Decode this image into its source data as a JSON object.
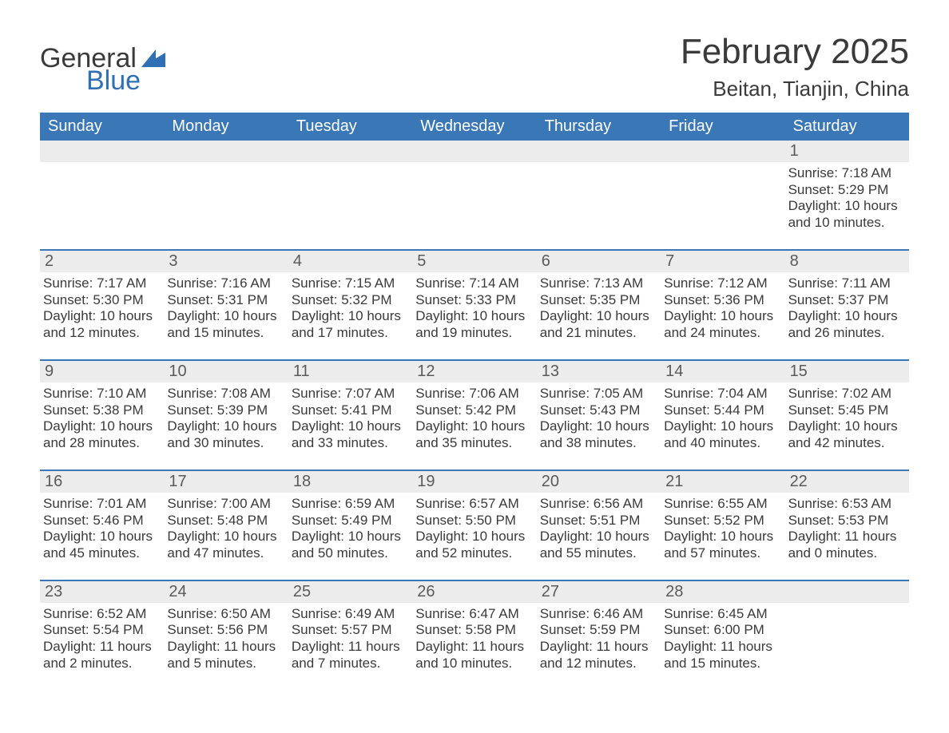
{
  "brand": {
    "general": "General",
    "blue": "Blue"
  },
  "title": "February 2025",
  "location": "Beitan, Tianjin, China",
  "colors": {
    "header_bg": "#3a77b6",
    "daynum_bg": "#ececec",
    "divider": "#3a77b6",
    "text": "#3a3a3a",
    "brand_blue": "#2f6fb3",
    "page_bg": "#ffffff"
  },
  "weekdays": [
    "Sunday",
    "Monday",
    "Tuesday",
    "Wednesday",
    "Thursday",
    "Friday",
    "Saturday"
  ],
  "weeks": [
    [
      {
        "day": "",
        "sunrise": "",
        "sunset": "",
        "daylight": ""
      },
      {
        "day": "",
        "sunrise": "",
        "sunset": "",
        "daylight": ""
      },
      {
        "day": "",
        "sunrise": "",
        "sunset": "",
        "daylight": ""
      },
      {
        "day": "",
        "sunrise": "",
        "sunset": "",
        "daylight": ""
      },
      {
        "day": "",
        "sunrise": "",
        "sunset": "",
        "daylight": ""
      },
      {
        "day": "",
        "sunrise": "",
        "sunset": "",
        "daylight": ""
      },
      {
        "day": "1",
        "sunrise": "Sunrise: 7:18 AM",
        "sunset": "Sunset: 5:29 PM",
        "daylight": "Daylight: 10 hours and 10 minutes."
      }
    ],
    [
      {
        "day": "2",
        "sunrise": "Sunrise: 7:17 AM",
        "sunset": "Sunset: 5:30 PM",
        "daylight": "Daylight: 10 hours and 12 minutes."
      },
      {
        "day": "3",
        "sunrise": "Sunrise: 7:16 AM",
        "sunset": "Sunset: 5:31 PM",
        "daylight": "Daylight: 10 hours and 15 minutes."
      },
      {
        "day": "4",
        "sunrise": "Sunrise: 7:15 AM",
        "sunset": "Sunset: 5:32 PM",
        "daylight": "Daylight: 10 hours and 17 minutes."
      },
      {
        "day": "5",
        "sunrise": "Sunrise: 7:14 AM",
        "sunset": "Sunset: 5:33 PM",
        "daylight": "Daylight: 10 hours and 19 minutes."
      },
      {
        "day": "6",
        "sunrise": "Sunrise: 7:13 AM",
        "sunset": "Sunset: 5:35 PM",
        "daylight": "Daylight: 10 hours and 21 minutes."
      },
      {
        "day": "7",
        "sunrise": "Sunrise: 7:12 AM",
        "sunset": "Sunset: 5:36 PM",
        "daylight": "Daylight: 10 hours and 24 minutes."
      },
      {
        "day": "8",
        "sunrise": "Sunrise: 7:11 AM",
        "sunset": "Sunset: 5:37 PM",
        "daylight": "Daylight: 10 hours and 26 minutes."
      }
    ],
    [
      {
        "day": "9",
        "sunrise": "Sunrise: 7:10 AM",
        "sunset": "Sunset: 5:38 PM",
        "daylight": "Daylight: 10 hours and 28 minutes."
      },
      {
        "day": "10",
        "sunrise": "Sunrise: 7:08 AM",
        "sunset": "Sunset: 5:39 PM",
        "daylight": "Daylight: 10 hours and 30 minutes."
      },
      {
        "day": "11",
        "sunrise": "Sunrise: 7:07 AM",
        "sunset": "Sunset: 5:41 PM",
        "daylight": "Daylight: 10 hours and 33 minutes."
      },
      {
        "day": "12",
        "sunrise": "Sunrise: 7:06 AM",
        "sunset": "Sunset: 5:42 PM",
        "daylight": "Daylight: 10 hours and 35 minutes."
      },
      {
        "day": "13",
        "sunrise": "Sunrise: 7:05 AM",
        "sunset": "Sunset: 5:43 PM",
        "daylight": "Daylight: 10 hours and 38 minutes."
      },
      {
        "day": "14",
        "sunrise": "Sunrise: 7:04 AM",
        "sunset": "Sunset: 5:44 PM",
        "daylight": "Daylight: 10 hours and 40 minutes."
      },
      {
        "day": "15",
        "sunrise": "Sunrise: 7:02 AM",
        "sunset": "Sunset: 5:45 PM",
        "daylight": "Daylight: 10 hours and 42 minutes."
      }
    ],
    [
      {
        "day": "16",
        "sunrise": "Sunrise: 7:01 AM",
        "sunset": "Sunset: 5:46 PM",
        "daylight": "Daylight: 10 hours and 45 minutes."
      },
      {
        "day": "17",
        "sunrise": "Sunrise: 7:00 AM",
        "sunset": "Sunset: 5:48 PM",
        "daylight": "Daylight: 10 hours and 47 minutes."
      },
      {
        "day": "18",
        "sunrise": "Sunrise: 6:59 AM",
        "sunset": "Sunset: 5:49 PM",
        "daylight": "Daylight: 10 hours and 50 minutes."
      },
      {
        "day": "19",
        "sunrise": "Sunrise: 6:57 AM",
        "sunset": "Sunset: 5:50 PM",
        "daylight": "Daylight: 10 hours and 52 minutes."
      },
      {
        "day": "20",
        "sunrise": "Sunrise: 6:56 AM",
        "sunset": "Sunset: 5:51 PM",
        "daylight": "Daylight: 10 hours and 55 minutes."
      },
      {
        "day": "21",
        "sunrise": "Sunrise: 6:55 AM",
        "sunset": "Sunset: 5:52 PM",
        "daylight": "Daylight: 10 hours and 57 minutes."
      },
      {
        "day": "22",
        "sunrise": "Sunrise: 6:53 AM",
        "sunset": "Sunset: 5:53 PM",
        "daylight": "Daylight: 11 hours and 0 minutes."
      }
    ],
    [
      {
        "day": "23",
        "sunrise": "Sunrise: 6:52 AM",
        "sunset": "Sunset: 5:54 PM",
        "daylight": "Daylight: 11 hours and 2 minutes."
      },
      {
        "day": "24",
        "sunrise": "Sunrise: 6:50 AM",
        "sunset": "Sunset: 5:56 PM",
        "daylight": "Daylight: 11 hours and 5 minutes."
      },
      {
        "day": "25",
        "sunrise": "Sunrise: 6:49 AM",
        "sunset": "Sunset: 5:57 PM",
        "daylight": "Daylight: 11 hours and 7 minutes."
      },
      {
        "day": "26",
        "sunrise": "Sunrise: 6:47 AM",
        "sunset": "Sunset: 5:58 PM",
        "daylight": "Daylight: 11 hours and 10 minutes."
      },
      {
        "day": "27",
        "sunrise": "Sunrise: 6:46 AM",
        "sunset": "Sunset: 5:59 PM",
        "daylight": "Daylight: 11 hours and 12 minutes."
      },
      {
        "day": "28",
        "sunrise": "Sunrise: 6:45 AM",
        "sunset": "Sunset: 6:00 PM",
        "daylight": "Daylight: 11 hours and 15 minutes."
      },
      {
        "day": "",
        "sunrise": "",
        "sunset": "",
        "daylight": ""
      }
    ]
  ]
}
